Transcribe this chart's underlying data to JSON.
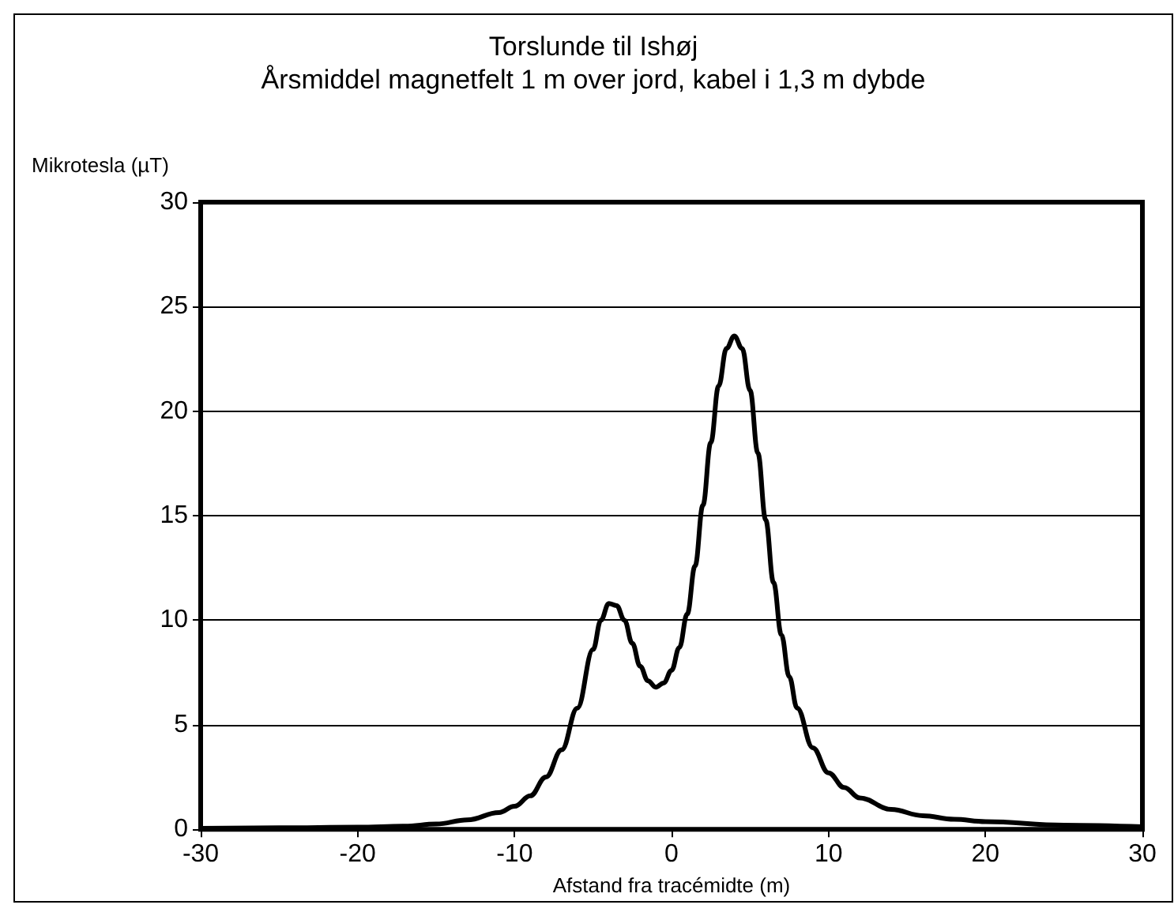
{
  "chart_data": {
    "type": "line",
    "title": "Torslunde til Ishøj",
    "subtitle": "Årsmiddel magnetfelt 1 m over jord, kabel i 1,3 m dybde",
    "xlabel": "Afstand fra tracémidte (m)",
    "ylabel": "Mikrotesla (µT)",
    "x": [
      -30,
      -25,
      -20,
      -17,
      -15,
      -13,
      -11,
      -10,
      -9,
      -8,
      -7,
      -6,
      -5,
      -4.5,
      -4,
      -3.5,
      -3,
      -2.5,
      -2,
      -1.5,
      -1,
      -0.5,
      0,
      0.5,
      1,
      1.5,
      2,
      2.5,
      3,
      3.5,
      4,
      4.5,
      5,
      5.5,
      6,
      6.5,
      7,
      7.5,
      8,
      9,
      10,
      11,
      12,
      14,
      16,
      18,
      20,
      25,
      30
    ],
    "series": [
      {
        "color": "#000000",
        "values": [
          0.05,
          0.07,
          0.1,
          0.15,
          0.25,
          0.45,
          0.8,
          1.1,
          1.6,
          2.5,
          3.8,
          5.8,
          8.6,
          10.0,
          10.8,
          10.7,
          10.0,
          8.9,
          7.8,
          7.1,
          6.8,
          7.0,
          7.6,
          8.7,
          10.3,
          12.6,
          15.5,
          18.5,
          21.2,
          23.0,
          23.6,
          23.0,
          21.0,
          18.0,
          14.8,
          11.8,
          9.3,
          7.3,
          5.8,
          3.9,
          2.7,
          2.0,
          1.5,
          0.95,
          0.65,
          0.48,
          0.37,
          0.2,
          0.12
        ]
      }
    ],
    "xlim": [
      -30,
      30
    ],
    "xticks": [
      -30,
      -20,
      -10,
      0,
      10,
      20,
      30
    ],
    "ylim": [
      0,
      30
    ],
    "yticks": [
      0,
      5,
      10,
      15,
      20,
      25,
      30
    ],
    "grid": "y",
    "marker": "none",
    "line_style": "solid"
  }
}
